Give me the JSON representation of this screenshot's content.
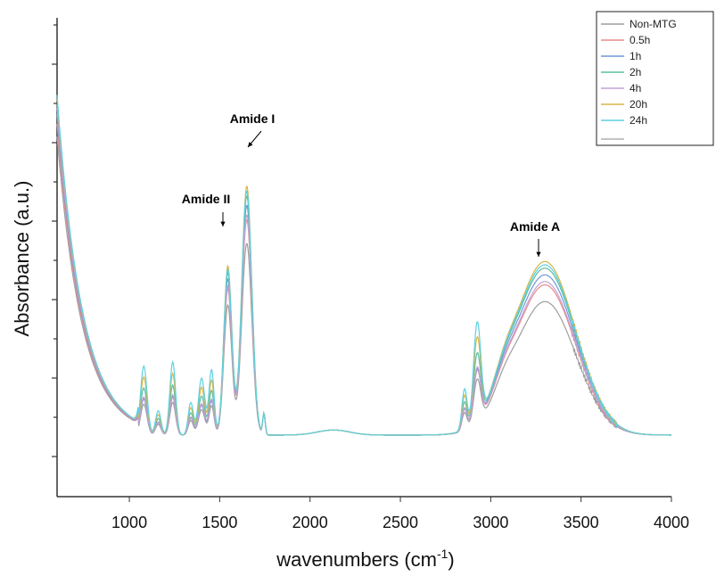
{
  "chart_data": {
    "type": "line",
    "xlabel": "wavenumbers (cm-1)",
    "xlabel_main": "wavenumbers (cm",
    "xlabel_sup": "-1",
    "xlabel_close": ")",
    "ylabel": "Absorbance (a.u.)",
    "xlim": [
      600,
      4000
    ],
    "ylim": [
      0,
      1
    ],
    "x_ticks": [
      1000,
      1500,
      2000,
      2500,
      3000,
      3500,
      4000
    ],
    "y_tick_labels_shown": false,
    "legend_position": "top-right",
    "annotations": [
      {
        "text": "Amide II",
        "x": 1530
      },
      {
        "text": "Amide I",
        "x": 1640
      },
      {
        "text": "Amide A",
        "x": 3280
      }
    ],
    "series": [
      {
        "name": "Non-MTG",
        "color": "#9e9e9e",
        "scale": 0.8,
        "base": 0.93,
        "fp": 0.85
      },
      {
        "name": "0.5h",
        "color": "#e88a8a",
        "scale": 0.9,
        "base": 0.97,
        "fp": 1.0
      },
      {
        "name": "1h",
        "color": "#6f97d6",
        "scale": 0.96,
        "base": 1.0,
        "fp": 1.0
      },
      {
        "name": "2h",
        "color": "#5bbd9f",
        "scale": 1.0,
        "base": 1.03,
        "fp": 1.3
      },
      {
        "name": "4h",
        "color": "#c0a2d8",
        "scale": 0.92,
        "base": 1.02,
        "fp": 1.05
      },
      {
        "name": "20h",
        "color": "#d8b547",
        "scale": 1.04,
        "base": 1.05,
        "fp": 1.6
      },
      {
        "name": "24h",
        "color": "#5cd1e0",
        "scale": 1.02,
        "base": 1.06,
        "fp": 1.9
      }
    ]
  }
}
